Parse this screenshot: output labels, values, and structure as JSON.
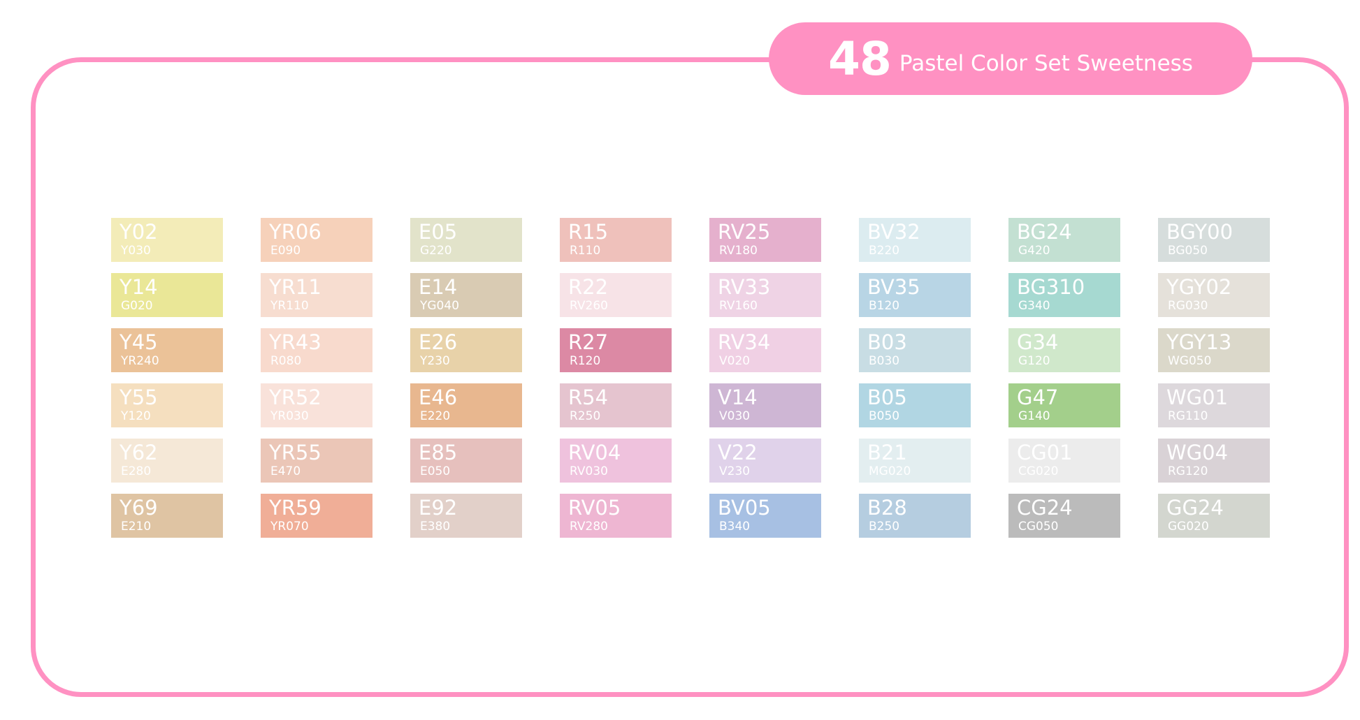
{
  "title": {
    "number": "48",
    "text": "Pastel Color Set Sweetness"
  },
  "colors": {
    "frame": "#ff91c2",
    "pill": "#ff91c2",
    "label": "#ffffff"
  },
  "columns": [
    [
      {
        "code": "Y02",
        "sub": "Y030",
        "color": "#f3ecb8"
      },
      {
        "code": "Y14",
        "sub": "G020",
        "color": "#eae797"
      },
      {
        "code": "Y45",
        "sub": "YR240",
        "color": "#ebc298"
      },
      {
        "code": "Y55",
        "sub": "Y120",
        "color": "#f5dfbf"
      },
      {
        "code": "Y62",
        "sub": "E280",
        "color": "#f5e8d7"
      },
      {
        "code": "Y69",
        "sub": "E210",
        "color": "#dfc4a3"
      }
    ],
    [
      {
        "code": "YR06",
        "sub": "E090",
        "color": "#f6d1ba"
      },
      {
        "code": "YR11",
        "sub": "YR110",
        "color": "#f7ddd0"
      },
      {
        "code": "YR43",
        "sub": "R080",
        "color": "#f8dacd"
      },
      {
        "code": "YR52",
        "sub": "YR030",
        "color": "#f9e2da"
      },
      {
        "code": "YR55",
        "sub": "E470",
        "color": "#ebc6b7"
      },
      {
        "code": "YR59",
        "sub": "YR070",
        "color": "#f0ae97"
      }
    ],
    [
      {
        "code": "E05",
        "sub": "G220",
        "color": "#e2e3ca"
      },
      {
        "code": "E14",
        "sub": "YG040",
        "color": "#d9cbb3"
      },
      {
        "code": "E26",
        "sub": "Y230",
        "color": "#e8d2a9"
      },
      {
        "code": "E46",
        "sub": "E220",
        "color": "#e8b78f"
      },
      {
        "code": "E85",
        "sub": "E050",
        "color": "#e6c0bd"
      },
      {
        "code": "E92",
        "sub": "E380",
        "color": "#e2d0c9"
      }
    ],
    [
      {
        "code": "R15",
        "sub": "R110",
        "color": "#efc1bb"
      },
      {
        "code": "R22",
        "sub": "RV260",
        "color": "#f7e3e7"
      },
      {
        "code": "R27",
        "sub": "R120",
        "color": "#dc89a4"
      },
      {
        "code": "R54",
        "sub": "R250",
        "color": "#e5c4cf"
      },
      {
        "code": "RV04",
        "sub": "RV030",
        "color": "#efc2dd"
      },
      {
        "code": "RV05",
        "sub": "RV280",
        "color": "#eeb6d2"
      }
    ],
    [
      {
        "code": "RV25",
        "sub": "RV180",
        "color": "#e5b0cd"
      },
      {
        "code": "RV33",
        "sub": "RV160",
        "color": "#efd3e5"
      },
      {
        "code": "RV34",
        "sub": "V020",
        "color": "#f0d0e4"
      },
      {
        "code": "V14",
        "sub": "V030",
        "color": "#ceb6d4"
      },
      {
        "code": "V22",
        "sub": "V230",
        "color": "#e0d2ea"
      },
      {
        "code": "BV05",
        "sub": "B340",
        "color": "#a7c0e3"
      }
    ],
    [
      {
        "code": "BV32",
        "sub": "B220",
        "color": "#dcecf0"
      },
      {
        "code": "BV35",
        "sub": "B120",
        "color": "#b8d5e5"
      },
      {
        "code": "B03",
        "sub": "B030",
        "color": "#c8dde4"
      },
      {
        "code": "B05",
        "sub": "B050",
        "color": "#b1d6e3"
      },
      {
        "code": "B21",
        "sub": "MG020",
        "color": "#e3eef0"
      },
      {
        "code": "B28",
        "sub": "B250",
        "color": "#b5cde0"
      }
    ],
    [
      {
        "code": "BG24",
        "sub": "G420",
        "color": "#c3e0d2"
      },
      {
        "code": "BG310",
        "sub": "G340",
        "color": "#a6d9d1"
      },
      {
        "code": "G34",
        "sub": "G120",
        "color": "#d0e8cb"
      },
      {
        "code": "G47",
        "sub": "G140",
        "color": "#a3cf8b"
      },
      {
        "code": "CG01",
        "sub": "CG020",
        "color": "#ececec"
      },
      {
        "code": "CG24",
        "sub": "CG050",
        "color": "#bbbbbb"
      }
    ],
    [
      {
        "code": "BGY00",
        "sub": "BG050",
        "color": "#d6dddc"
      },
      {
        "code": "YGY02",
        "sub": "RG030",
        "color": "#e5e1da"
      },
      {
        "code": "YGY13",
        "sub": "WG050",
        "color": "#dbd8ca"
      },
      {
        "code": "WG01",
        "sub": "RG110",
        "color": "#ddd8dc"
      },
      {
        "code": "WG04",
        "sub": "RG120",
        "color": "#d9d2d6"
      },
      {
        "code": "GG24",
        "sub": "GG020",
        "color": "#d3d6cf"
      }
    ]
  ]
}
